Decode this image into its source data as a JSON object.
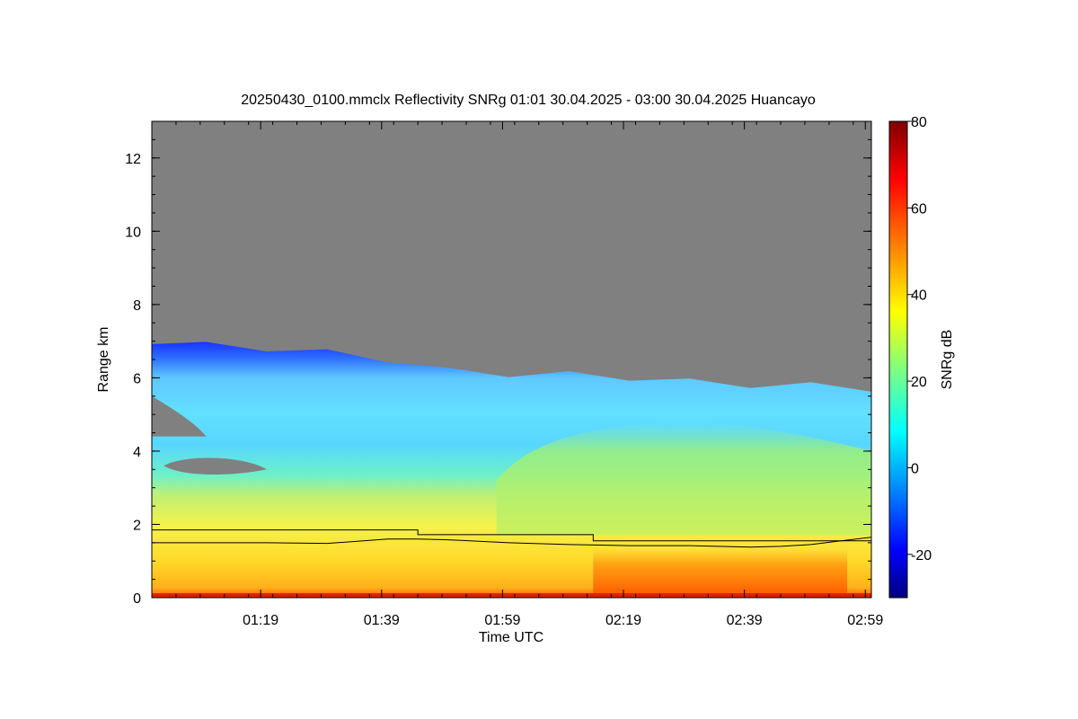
{
  "chart_data": {
    "type": "heatmap",
    "title": "20250430_0100.mmclx Reflectivity SNRg   01:01 30.04.2025 - 03:00 30.04.2025 Huancayo",
    "xlabel": "Time UTC",
    "ylabel": "Range km",
    "colorbar_label": "SNRg dB",
    "x_range_minutes_utc": [
      61,
      180
    ],
    "y_range_km": [
      0,
      13
    ],
    "x_ticks": [
      {
        "label": "01:19",
        "minute": 79
      },
      {
        "label": "01:39",
        "minute": 99
      },
      {
        "label": "01:59",
        "minute": 119
      },
      {
        "label": "02:19",
        "minute": 139
      },
      {
        "label": "02:39",
        "minute": 159
      },
      {
        "label": "02:59",
        "minute": 179
      }
    ],
    "y_ticks": [
      0,
      2,
      4,
      6,
      8,
      10,
      12
    ],
    "colorbar_range_db": [
      -30,
      80
    ],
    "colorbar_ticks": [
      -20,
      0,
      20,
      40,
      60,
      80
    ],
    "no_signal_color": "#808080",
    "colormap_stops": [
      "#00007f",
      "#0000ff",
      "#007fff",
      "#00ffff",
      "#7fff7f",
      "#ffff00",
      "#ff7f00",
      "#ff0000",
      "#7f0000"
    ],
    "signal_layers": [
      {
        "name": "cloud_top_km",
        "minute": [
          61,
          70,
          80,
          90,
          100,
          110,
          120,
          130,
          140,
          150,
          160,
          170,
          180
        ],
        "value": [
          7.0,
          6.9,
          6.8,
          6.7,
          6.5,
          6.2,
          6.1,
          6.1,
          6.0,
          5.9,
          5.8,
          5.8,
          5.7
        ]
      },
      {
        "name": "echo_snr_db_mid",
        "description_ranges": [
          {
            "y_km": [
              4.0,
              6.5
            ],
            "snr_db": 5
          },
          {
            "y_km": [
              2.0,
              4.0
            ],
            "snr_db": 20
          },
          {
            "y_km": [
              0.1,
              2.0
            ],
            "snr_db": 38
          },
          {
            "y_km": [
              0.0,
              0.1
            ],
            "snr_db": 65
          }
        ]
      },
      {
        "name": "strong_precip_minutes",
        "minute": [
          134,
          176
        ],
        "snr_db": 55
      }
    ],
    "overlay_lines": [
      {
        "name": "line_upper",
        "minute": [
          61,
          105,
          105,
          134,
          134,
          180
        ],
        "value": [
          1.85,
          1.85,
          1.72,
          1.72,
          1.55,
          1.55
        ]
      },
      {
        "name": "line_lower",
        "minute": [
          61,
          70,
          80,
          90,
          100,
          105,
          110,
          120,
          130,
          140,
          150,
          160,
          165,
          170,
          175,
          180
        ],
        "value": [
          1.5,
          1.5,
          1.5,
          1.48,
          1.6,
          1.6,
          1.58,
          1.5,
          1.45,
          1.42,
          1.42,
          1.38,
          1.4,
          1.45,
          1.55,
          1.65
        ]
      }
    ]
  }
}
